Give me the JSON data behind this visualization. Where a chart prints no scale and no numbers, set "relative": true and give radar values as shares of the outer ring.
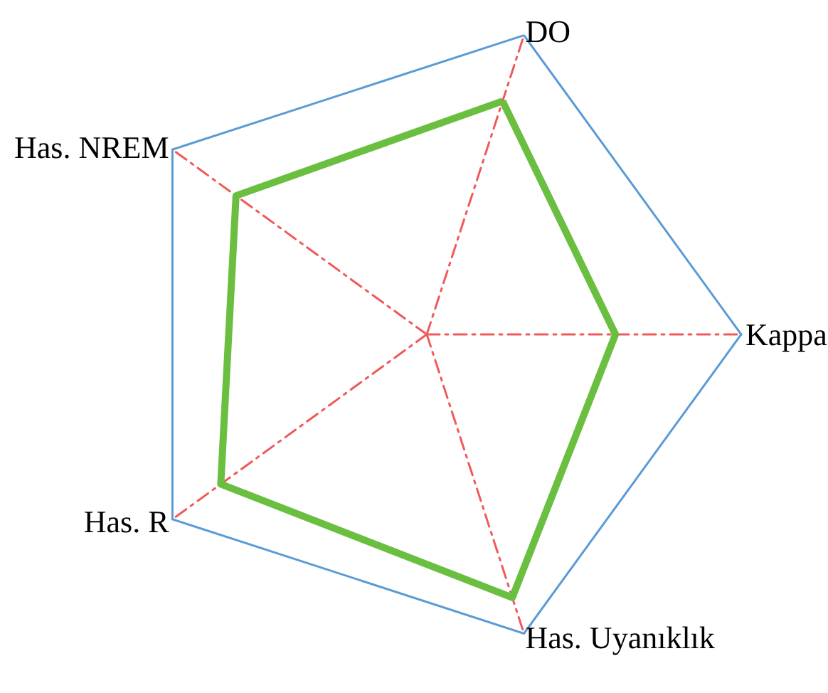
{
  "chart_data": {
    "type": "radar",
    "relative": true,
    "grid": true,
    "marker": "none",
    "line_style": "solid",
    "categories": [
      "DO",
      "Kappa",
      "Has. Uyanıklık",
      "Has. R",
      "Has. NREM"
    ],
    "series": [
      {
        "color": "#6abf40",
        "values": [
          0.78,
          0.6,
          0.88,
          0.81,
          0.75
        ]
      }
    ]
  }
}
